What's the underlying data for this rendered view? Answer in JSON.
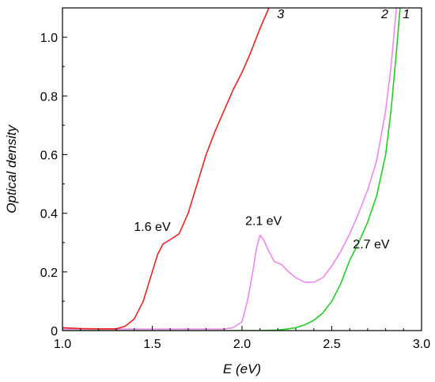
{
  "chart_data": {
    "type": "line",
    "xlabel": "E (eV)",
    "ylabel": "Optical density",
    "xlim": [
      1.0,
      3.0
    ],
    "ylim": [
      0,
      1.1
    ],
    "x_ticks": [
      "1.0",
      "1.5",
      "2.0",
      "2.5",
      "3.0"
    ],
    "y_ticks": [
      "0",
      "0.2",
      "0.4",
      "0.6",
      "0.8",
      "1.0"
    ],
    "grid": false,
    "legend": "none",
    "series": [
      {
        "name": "1",
        "color": "#22cc22",
        "x": [
          1.0,
          1.2,
          1.5,
          1.8,
          2.0,
          2.1,
          2.2,
          2.25,
          2.3,
          2.35,
          2.4,
          2.45,
          2.5,
          2.55,
          2.6,
          2.65,
          2.7,
          2.75,
          2.8,
          2.83,
          2.86,
          2.88
        ],
        "y": [
          0.0,
          0.0,
          0.0,
          0.0,
          0.0,
          0.0,
          0.002,
          0.005,
          0.01,
          0.02,
          0.035,
          0.06,
          0.1,
          0.16,
          0.24,
          0.3,
          0.37,
          0.46,
          0.6,
          0.75,
          0.95,
          1.1
        ]
      },
      {
        "name": "2",
        "color": "#ee88ee",
        "x": [
          1.0,
          1.3,
          1.6,
          1.9,
          1.95,
          2.0,
          2.03,
          2.06,
          2.08,
          2.1,
          2.12,
          2.15,
          2.18,
          2.22,
          2.26,
          2.3,
          2.35,
          2.4,
          2.45,
          2.5,
          2.55,
          2.6,
          2.65,
          2.7,
          2.75,
          2.8,
          2.83,
          2.86
        ],
        "y": [
          0.005,
          0.005,
          0.005,
          0.005,
          0.01,
          0.03,
          0.1,
          0.2,
          0.28,
          0.325,
          0.31,
          0.27,
          0.235,
          0.225,
          0.2,
          0.18,
          0.165,
          0.165,
          0.18,
          0.22,
          0.27,
          0.33,
          0.4,
          0.48,
          0.58,
          0.75,
          0.9,
          1.1
        ]
      },
      {
        "name": "3",
        "color": "#ee2222",
        "x": [
          1.0,
          1.1,
          1.2,
          1.3,
          1.35,
          1.4,
          1.45,
          1.5,
          1.53,
          1.56,
          1.6,
          1.65,
          1.7,
          1.75,
          1.8,
          1.85,
          1.9,
          1.95,
          2.0,
          2.05,
          2.1,
          2.15,
          2.2
        ],
        "y": [
          0.01,
          0.007,
          0.006,
          0.006,
          0.015,
          0.04,
          0.1,
          0.2,
          0.26,
          0.295,
          0.31,
          0.33,
          0.4,
          0.5,
          0.6,
          0.68,
          0.75,
          0.82,
          0.88,
          0.95,
          1.03,
          1.1,
          1.18
        ]
      }
    ],
    "annotations": [
      {
        "text": "1.6 eV",
        "x": 1.5,
        "y": 0.34
      },
      {
        "text": "2.1 eV",
        "x": 2.12,
        "y": 0.36
      },
      {
        "text": "2.7 eV",
        "x": 2.72,
        "y": 0.28
      }
    ],
    "curve_tags": [
      {
        "text": "3",
        "x": 2.215,
        "y": 1.065
      },
      {
        "text": "2",
        "x": 2.795,
        "y": 1.065
      },
      {
        "text": "1",
        "x": 2.915,
        "y": 1.065
      }
    ]
  }
}
